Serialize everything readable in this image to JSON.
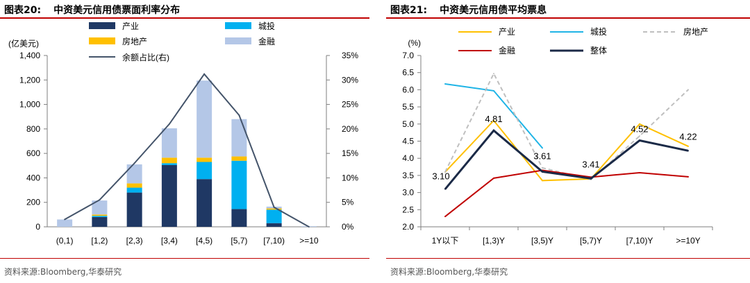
{
  "left_panel": {
    "fig_label": "图表20:",
    "title": "中资美元信用债票面利率分布",
    "source": "资料来源:Bloomberg,华泰研究"
  },
  "right_panel": {
    "fig_label": "图表21:",
    "title": "中资美元信用债平均票息",
    "source": "资料来源:Bloomberg,华泰研究"
  },
  "chart_data": [
    {
      "type": "bar",
      "stacked": true,
      "title": "中资美元信用债票面利率分布",
      "ylabel": "(亿美元)",
      "ylim": [
        0,
        1400
      ],
      "yticks": [
        0,
        200,
        400,
        600,
        800,
        1000,
        1200,
        1400
      ],
      "ytick_labels": [
        "0",
        "200",
        "400",
        "600",
        "800",
        "1,000",
        "1,200",
        "1,400"
      ],
      "y2lim": [
        0,
        35
      ],
      "y2ticks": [
        0,
        5,
        10,
        15,
        20,
        25,
        30,
        35
      ],
      "y2tick_labels": [
        "0%",
        "5%",
        "10%",
        "15%",
        "20%",
        "25%",
        "30%",
        "35%"
      ],
      "categories": [
        "(0,1)",
        "[1,2)",
        "[2,3)",
        "[3,4)",
        "[4,5)",
        "[5,7)",
        "[7,10)",
        ">=10"
      ],
      "series": [
        {
          "name": "产业",
          "color": "#1f3864",
          "values": [
            0,
            80,
            280,
            505,
            390,
            145,
            30,
            0
          ]
        },
        {
          "name": "城投",
          "color": "#00b0f0",
          "values": [
            0,
            10,
            40,
            15,
            140,
            395,
            110,
            0
          ]
        },
        {
          "name": "房地产",
          "color": "#ffc000",
          "values": [
            0,
            10,
            35,
            45,
            35,
            35,
            10,
            0
          ]
        },
        {
          "name": "金融",
          "color": "#b4c7e7",
          "values": [
            60,
            115,
            155,
            240,
            630,
            305,
            15,
            5
          ]
        }
      ],
      "line_series": {
        "name": "余额占比(右)",
        "color": "#44546a",
        "axis": "right",
        "values": [
          1.5,
          5.5,
          13,
          21,
          31.2,
          22.8,
          4,
          0
        ]
      },
      "legend": [
        "产业",
        "城投",
        "房地产",
        "金融",
        "余额占比(右)"
      ]
    },
    {
      "type": "line",
      "title": "中资美元信用债平均票息",
      "ylabel": "(%)",
      "ylim": [
        2.0,
        7.0
      ],
      "yticks": [
        2.0,
        2.5,
        3.0,
        3.5,
        4.0,
        4.5,
        5.0,
        5.5,
        6.0,
        6.5,
        7.0
      ],
      "ytick_labels": [
        "2.0",
        "2.5",
        "3.0",
        "3.5",
        "4.0",
        "4.5",
        "5.0",
        "5.5",
        "6.0",
        "6.5",
        "7.0"
      ],
      "categories": [
        "1Y以下",
        "[1,3)Y",
        "[3,5)Y",
        "[5,7)Y",
        "[7,10)Y",
        ">=10Y"
      ],
      "series": [
        {
          "name": "产业",
          "color": "#ffc000",
          "dash": false,
          "values": [
            3.6,
            5.1,
            3.35,
            3.4,
            5.0,
            4.35
          ]
        },
        {
          "name": "城投",
          "color": "#1fb4e6",
          "dash": false,
          "values": [
            6.17,
            5.97,
            4.3,
            null,
            null,
            null
          ]
        },
        {
          "name": "房地产",
          "color": "#bfbfbf",
          "dash": true,
          "values": [
            3.6,
            6.47,
            3.72,
            3.38,
            4.65,
            6.0
          ]
        },
        {
          "name": "金融",
          "color": "#c00000",
          "dash": false,
          "values": [
            2.3,
            3.42,
            3.65,
            3.45,
            3.58,
            3.46
          ]
        },
        {
          "name": "整体",
          "color": "#1b2a47",
          "dash": false,
          "width": 3,
          "values": [
            3.1,
            4.81,
            3.61,
            3.41,
            4.52,
            4.22
          ]
        }
      ],
      "data_labels": [
        {
          "series": "整体",
          "index": 0,
          "text": "3.10"
        },
        {
          "series": "整体",
          "index": 1,
          "text": "4.81"
        },
        {
          "series": "整体",
          "index": 2,
          "text": "3.61"
        },
        {
          "series": "整体",
          "index": 3,
          "text": "3.41"
        },
        {
          "series": "整体",
          "index": 4,
          "text": "4.52"
        },
        {
          "series": "整体",
          "index": 5,
          "text": "4.22"
        }
      ],
      "legend": [
        "产业",
        "城投",
        "房地产",
        "金融",
        "整体"
      ]
    }
  ]
}
